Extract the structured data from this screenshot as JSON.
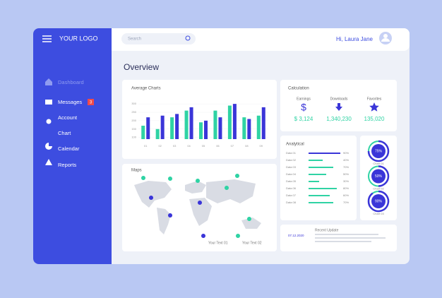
{
  "header": {
    "logo": "YOUR LOGO",
    "search_placeholder": "Search",
    "greeting": "Hi, Laura Jane"
  },
  "sidebar": {
    "items": [
      "Dashboard",
      "Messages",
      "Account",
      "Chart",
      "Calendar",
      "Reports"
    ],
    "messages_badge": "3"
  },
  "overview": {
    "title": "Overview"
  },
  "average_charts": {
    "title": "Average Charts",
    "type": "bar",
    "categories": [
      "01",
      "02",
      "03",
      "04",
      "05",
      "06",
      "07",
      "08",
      "09"
    ],
    "series": [
      {
        "color": "#2fd3a4",
        "values": [
          170,
          150,
          220,
          260,
          190,
          260,
          290,
          220,
          230
        ]
      },
      {
        "color": "#3a35d8",
        "values": [
          220,
          230,
          240,
          280,
          200,
          220,
          300,
          210,
          280
        ]
      }
    ],
    "ylim": [
      90,
      330
    ],
    "yticks": [
      100,
      150,
      200,
      250,
      300
    ]
  },
  "maps": {
    "title": "Maps",
    "legend": [
      "Your Text 01",
      "Your Text 02"
    ]
  },
  "calculation": {
    "title": "Calculation",
    "items": [
      {
        "label": "Earnings",
        "value": "$ 3,124"
      },
      {
        "label": "Downloads",
        "value": "1,340,230"
      },
      {
        "label": "Favorites",
        "value": "135,020"
      }
    ]
  },
  "analytical": {
    "title": "Analytical",
    "rows": [
      {
        "label": "Data 01",
        "value": 90,
        "value_label": "90%"
      },
      {
        "label": "Data 02",
        "value": 40,
        "value_label": "40%"
      },
      {
        "label": "Data 03",
        "value": 70,
        "value_label": "70%"
      },
      {
        "label": "Data 04",
        "value": 50,
        "value_label": "50%"
      },
      {
        "label": "Data 05",
        "value": 30,
        "value_label": "30%"
      },
      {
        "label": "Data 06",
        "value": 80,
        "value_label": "80%"
      },
      {
        "label": "Data 07",
        "value": 60,
        "value_label": "60%"
      },
      {
        "label": "Data 08",
        "value": 70,
        "value_label": "70%"
      }
    ]
  },
  "charts": [
    {
      "value": 75,
      "value_label": "75%",
      "caption": "Chart 01"
    },
    {
      "value": 50,
      "value_label": "50%",
      "caption": "Chart 02"
    },
    {
      "value": 90,
      "value_label": "90%",
      "caption": "Chart 03"
    }
  ],
  "recent_update": {
    "title": "Recent Update",
    "date": "07.12.2020"
  }
}
